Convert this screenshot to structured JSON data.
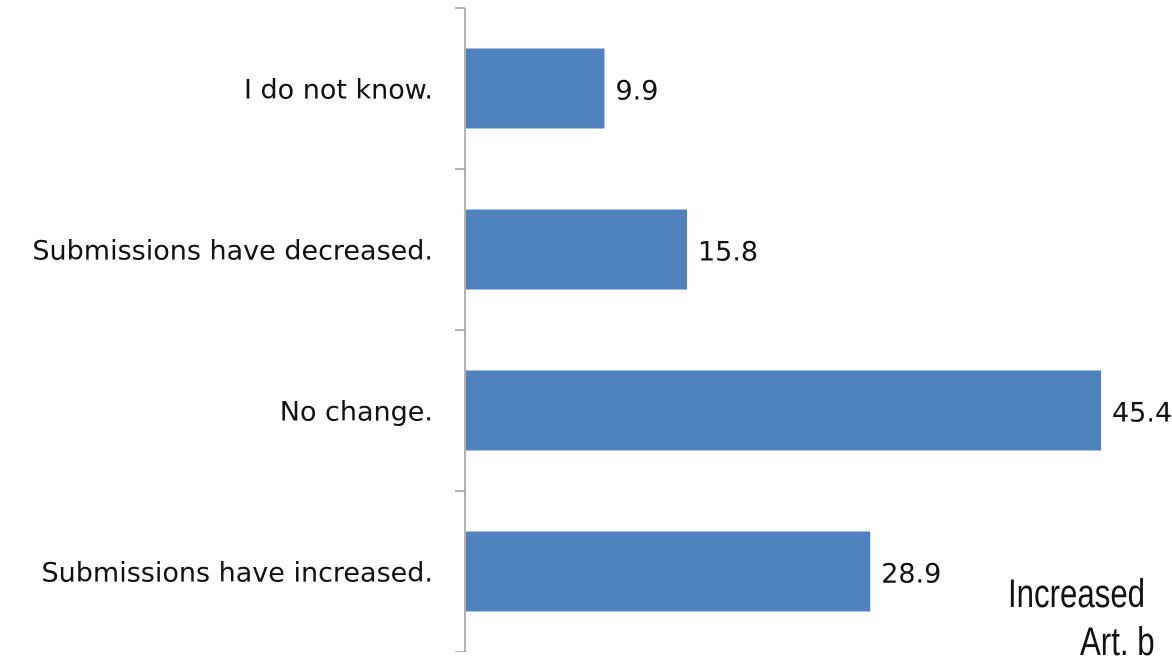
{
  "chart_data": {
    "type": "bar",
    "orientation": "horizontal",
    "categories": [
      "I do not know.",
      "Submissions have decreased.",
      "No change.",
      "Submissions have increased."
    ],
    "values": [
      9.9,
      15.8,
      45.4,
      28.9
    ],
    "value_labels": [
      "9.9",
      "15.8",
      "45.4",
      "28.9"
    ],
    "xlim": [
      0,
      45.4
    ],
    "grid": false,
    "legend": "none",
    "bar_color": "#4f81bd",
    "axis_color": "#999999"
  },
  "overlay_text": {
    "line1": "Increased",
    "line2": "Art. b"
  }
}
